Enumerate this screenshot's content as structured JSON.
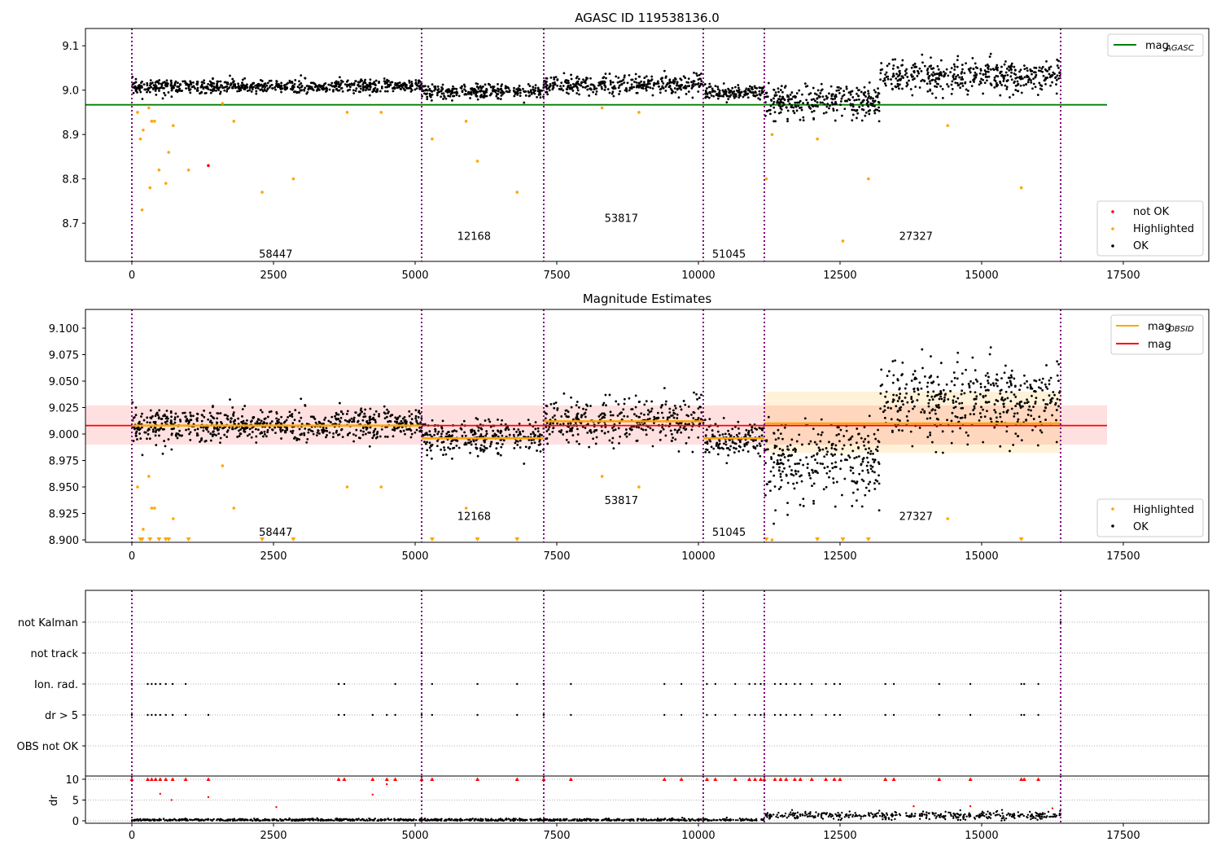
{
  "chart_data": [
    {
      "type": "scatter",
      "title": "AGASC ID 119538136.0",
      "xlim": [
        -819,
        19009
      ],
      "ylim": [
        8.614,
        9.139
      ],
      "xticks": [
        "0",
        "2500",
        "5000",
        "7500",
        "10000",
        "12500",
        "15000",
        "17500"
      ],
      "yticks": [
        "8.7",
        "8.8",
        "8.9",
        "9.0",
        "9.1"
      ],
      "legend_top": {
        "label": "mag",
        "sub": "AGASC",
        "color": "#008000"
      },
      "legend_bottom": [
        {
          "label": "not OK",
          "color": "#ff0000"
        },
        {
          "label": "Highlighted",
          "color": "#ffa500"
        },
        {
          "label": "OK",
          "color": "#000000"
        }
      ],
      "mag_agasc": 8.967
    },
    {
      "type": "scatter",
      "title": "Magnitude Estimates",
      "xlim": [
        -819,
        19009
      ],
      "ylim": [
        8.8977,
        9.1177
      ],
      "xticks": [
        "0",
        "2500",
        "5000",
        "7500",
        "10000",
        "12500",
        "15000",
        "17500"
      ],
      "yticks": [
        "8.900",
        "8.925",
        "8.950",
        "8.975",
        "9.000",
        "9.025",
        "9.050",
        "9.075",
        "9.100"
      ],
      "legend_top": [
        {
          "label": "mag",
          "sub": "OBSID",
          "color": "#ffa500"
        },
        {
          "label": "mag",
          "sub": "",
          "color": "#ff0000"
        }
      ],
      "legend_bottom": [
        {
          "label": "Highlighted",
          "color": "#ffa500"
        },
        {
          "label": "OK",
          "color": "#000000"
        }
      ],
      "mag": 9.008,
      "mag_band": [
        8.99,
        9.027
      ]
    },
    {
      "type": "scatter",
      "categories": [
        "OBS not OK",
        "dr > 5",
        "Ion. rad.",
        "not track",
        "not Kalman"
      ],
      "dr_ylabel": "dr",
      "dr_yticks": [
        "0",
        "5",
        "10"
      ],
      "dr_ylim": [
        -0.59,
        10.78
      ],
      "xticks": [
        "0",
        "2500",
        "5000",
        "7500",
        "10000",
        "12500",
        "15000",
        "17500"
      ],
      "ion_rad_x": [
        0,
        280,
        350,
        420,
        500,
        600,
        720,
        950,
        3650,
        3750,
        4650,
        5115,
        5300,
        6100,
        6800,
        7270,
        7750,
        9400,
        9700,
        10150,
        10300,
        10650,
        10900,
        11000,
        11100,
        11164,
        11350,
        11450,
        11550,
        11700,
        11800,
        12000,
        12250,
        12400,
        12500,
        13300,
        13450,
        14250,
        14800,
        15700,
        15750,
        16000
      ],
      "dr5_x": [
        0,
        280,
        350,
        420,
        500,
        600,
        720,
        950,
        1350,
        3650,
        3750,
        4250,
        4500,
        4650,
        5115,
        5300,
        6100,
        6800,
        7270,
        7750,
        9400,
        9700,
        10150,
        10300,
        10650,
        10900,
        11000,
        11100,
        11164,
        11350,
        11450,
        11550,
        11700,
        11800,
        12000,
        12250,
        12400,
        12500,
        13300,
        13450,
        14250,
        14800,
        15700,
        15750,
        16000
      ],
      "not_track_x": [
        5115
      ],
      "not_kalman_x": [
        16394
      ]
    }
  ],
  "obsids": [
    {
      "id": "58447",
      "start": 0,
      "end": 5115,
      "mag_obsid": 9.008,
      "sd": 0.008,
      "label_x": 2540
    },
    {
      "id": "12168",
      "start": 5115,
      "end": 7270,
      "mag_obsid": 8.996,
      "sd": 0.008,
      "label_x": 6040
    },
    {
      "id": "53817",
      "start": 7270,
      "end": 10086,
      "mag_obsid": 9.012,
      "sd": 0.01,
      "label_x": 8640
    },
    {
      "id": "51045",
      "start": 10086,
      "end": 11164,
      "mag_obsid": 8.996,
      "sd": 0.008,
      "label_x": 10540
    },
    {
      "id": "27327",
      "start": 11164,
      "end": 16394,
      "mag_obsid": 9.01,
      "sd": 0.018,
      "label_x": 13840,
      "band": [
        8.982,
        9.04
      ]
    }
  ],
  "highlighted": [
    [
      100,
      8.95
    ],
    [
      150,
      8.89
    ],
    [
      180,
      8.73
    ],
    [
      200,
      8.91
    ],
    [
      300,
      8.96
    ],
    [
      320,
      8.78
    ],
    [
      350,
      8.93
    ],
    [
      400,
      8.93
    ],
    [
      480,
      8.82
    ],
    [
      600,
      8.79
    ],
    [
      650,
      8.86
    ],
    [
      730,
      8.92
    ],
    [
      1000,
      8.82
    ],
    [
      1600,
      8.97
    ],
    [
      1800,
      8.93
    ],
    [
      2300,
      8.77
    ],
    [
      2850,
      8.8
    ],
    [
      3800,
      8.95
    ],
    [
      4400,
      8.95
    ],
    [
      5300,
      8.89
    ],
    [
      5900,
      8.93
    ],
    [
      6100,
      8.84
    ],
    [
      6800,
      8.77
    ],
    [
      8300,
      8.96
    ],
    [
      8950,
      8.95
    ],
    [
      11200,
      8.8
    ],
    [
      11300,
      8.9
    ],
    [
      12100,
      8.89
    ],
    [
      12550,
      8.66
    ],
    [
      13000,
      8.8
    ],
    [
      14400,
      8.92
    ],
    [
      15700,
      8.78
    ]
  ],
  "not_ok": [
    [
      1350,
      8.83
    ]
  ],
  "colors": {
    "ok": "#000000",
    "highlighted": "#ffa500",
    "not_ok": "#ff0000",
    "obs_line": "#800080",
    "agasc": "#008000",
    "mag": "#ff0000"
  }
}
